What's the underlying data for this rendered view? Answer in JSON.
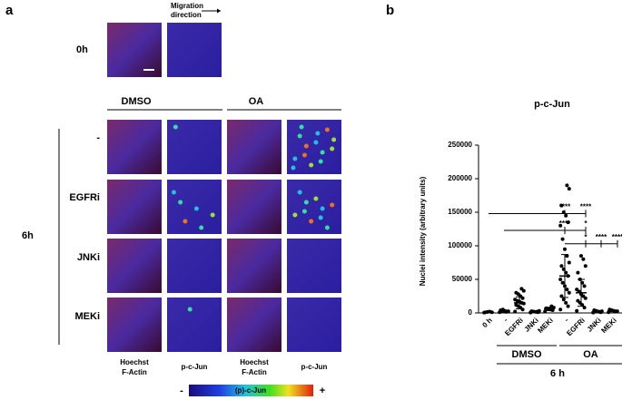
{
  "panel_a": {
    "label": "a",
    "row_0h": "0h",
    "migration": [
      "Migration",
      "direction"
    ],
    "treatments": [
      "DMSO",
      "OA"
    ],
    "rows": [
      "-",
      "EGFRi",
      "JNKi",
      "MEKi"
    ],
    "time": "6h",
    "columns": [
      [
        "Hoechst",
        "F-Actin"
      ],
      "p-c-Jun",
      [
        "Hoechst",
        "F-Actin"
      ],
      "p-c-Jun"
    ],
    "colorbar": {
      "low": "-",
      "label": "(p)-c-Jun",
      "high": "+"
    }
  },
  "chart_data": {
    "type": "strip",
    "panel": "b",
    "title": "p-c-Jun",
    "y_label": "Nuclei intensity (arbitrary units)",
    "categories": [
      "0 h",
      "-",
      "EGFRi",
      "JNKi",
      "MEKi",
      "-",
      "EGFRi",
      "JNKi",
      "MEKi"
    ],
    "groups": [
      "DMSO",
      "OA"
    ],
    "group_label": "6 h",
    "points": [
      [
        500,
        1000,
        2000,
        1500,
        800
      ],
      [
        1000,
        2000,
        3000,
        5000,
        4000,
        2500,
        1500
      ],
      [
        2000,
        5000,
        8000,
        10000,
        12000,
        14000,
        15000,
        17000,
        18000,
        20000,
        22000,
        25000,
        28000,
        30000,
        33000,
        36000
      ],
      [
        500,
        1000,
        1500,
        2000,
        2500,
        3000,
        1800
      ],
      [
        2000,
        4000,
        5000,
        6000,
        7000,
        8000,
        10000,
        5500
      ],
      [
        5000,
        10000,
        15000,
        20000,
        25000,
        30000,
        35000,
        40000,
        45000,
        50000,
        55000,
        60000,
        65000,
        70000,
        75000,
        85000,
        95000,
        110000,
        130000,
        135000,
        145000,
        150000,
        160000,
        185000,
        190000
      ],
      [
        3000,
        8000,
        12000,
        15000,
        18000,
        22000,
        25000,
        28000,
        32000,
        35000,
        40000,
        45000,
        50000,
        60000,
        70000,
        80000,
        85000
      ],
      [
        500,
        1000,
        2000,
        3000,
        4000,
        2500,
        1500
      ],
      [
        1000,
        2000,
        3000,
        4000,
        5000,
        2500
      ]
    ],
    "means": [
      1000,
      2500,
      15000,
      2000,
      6000,
      55000,
      30000,
      2000,
      3000
    ],
    "sd": [
      500,
      1500,
      9000,
      800,
      2500,
      32000,
      20000,
      1000,
      1300
    ],
    "color": "#000000",
    "ylim": [
      0,
      250000
    ],
    "yticks": [
      0,
      50000,
      100000,
      150000,
      200000,
      250000
    ],
    "significance": [
      {
        "y": 148000,
        "labels": [
          "****",
          "****"
        ]
      },
      {
        "y": 123000,
        "labels": [
          "****",
          "*"
        ]
      },
      {
        "y": 103000,
        "labels": [
          "*",
          "****",
          "****"
        ]
      }
    ]
  }
}
